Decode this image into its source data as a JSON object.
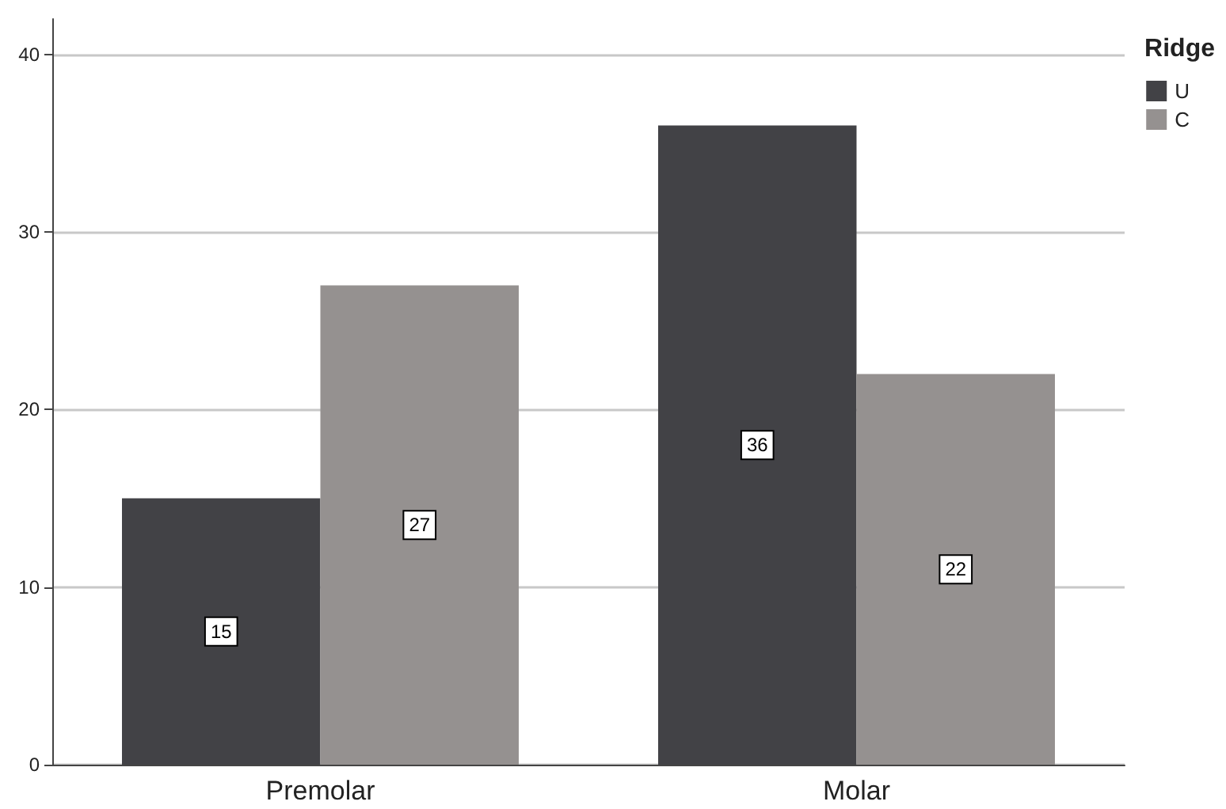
{
  "chart_data": {
    "type": "bar",
    "categories": [
      "Premolar",
      "Molar"
    ],
    "series": [
      {
        "name": "U",
        "color": "#424246",
        "values": [
          15,
          36
        ]
      },
      {
        "name": "C",
        "color": "#959190",
        "values": [
          27,
          22
        ]
      }
    ],
    "legend_title": "Ridge",
    "legend": "top right",
    "ylim": [
      0,
      42
    ],
    "yticks": [
      0,
      10,
      20,
      30,
      40
    ],
    "grid": "y",
    "data_labels": true
  }
}
